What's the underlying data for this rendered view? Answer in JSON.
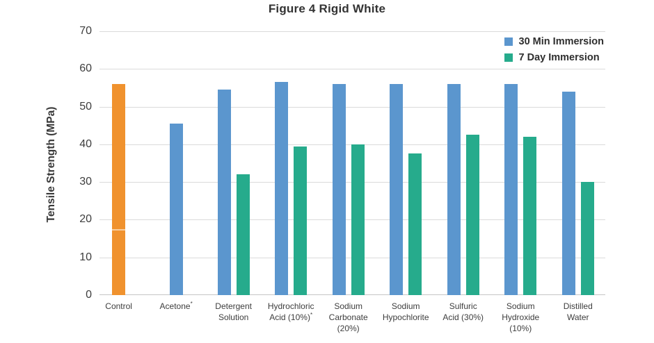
{
  "chart_data": {
    "type": "bar",
    "title": "Figure 4 Rigid White",
    "ylabel": "Tensile Strength (MPa)",
    "ylim": [
      0,
      70
    ],
    "yticks": [
      0,
      10,
      20,
      30,
      40,
      50,
      60,
      70
    ],
    "grid": "horizontal",
    "legend_position": "top-right",
    "categories": [
      "Control",
      "Acetone*",
      "Detergent Solution",
      "Hydrochloric Acid (10%)*",
      "Sodium Carbonate (20%)",
      "Sodium Hypochlorite",
      "Sulfuric Acid (30%)",
      "Sodium Hydroxide (10%)",
      "Distilled Water"
    ],
    "category_label_lines": [
      [
        "Control"
      ],
      [
        "Acetone*"
      ],
      [
        "Detergent",
        "Solution"
      ],
      [
        "Hydrochloric",
        "Acid (10%)*"
      ],
      [
        "Sodium",
        "Carbonate",
        "(20%)"
      ],
      [
        "Sodium",
        "Hypochlorite"
      ],
      [
        "Sulfuric",
        "Acid (30%)"
      ],
      [
        "Sodium",
        "Hydroxide",
        "(10%)"
      ],
      [
        "Distilled",
        "Water"
      ]
    ],
    "series": [
      {
        "name": "30 Min Immersion",
        "color": "#5B96CE",
        "values": [
          56,
          45.5,
          54.5,
          56.5,
          56,
          56,
          56,
          56,
          54
        ]
      },
      {
        "name": "7 Day Immersion",
        "color": "#26AB8C",
        "values": [
          null,
          null,
          32,
          39.5,
          40,
          37.5,
          42.5,
          42,
          30
        ]
      }
    ],
    "control_bar": {
      "category": "Control",
      "series": "30 Min Immersion",
      "color": "#F0922E"
    }
  },
  "colors": {
    "blue": "#5B96CE",
    "green": "#26AB8C",
    "orange": "#F0922E",
    "gridline": "#DADADA",
    "baseline": "#C6C6C6",
    "text_dark": "#333333",
    "text_axis": "#3D3D3D"
  }
}
